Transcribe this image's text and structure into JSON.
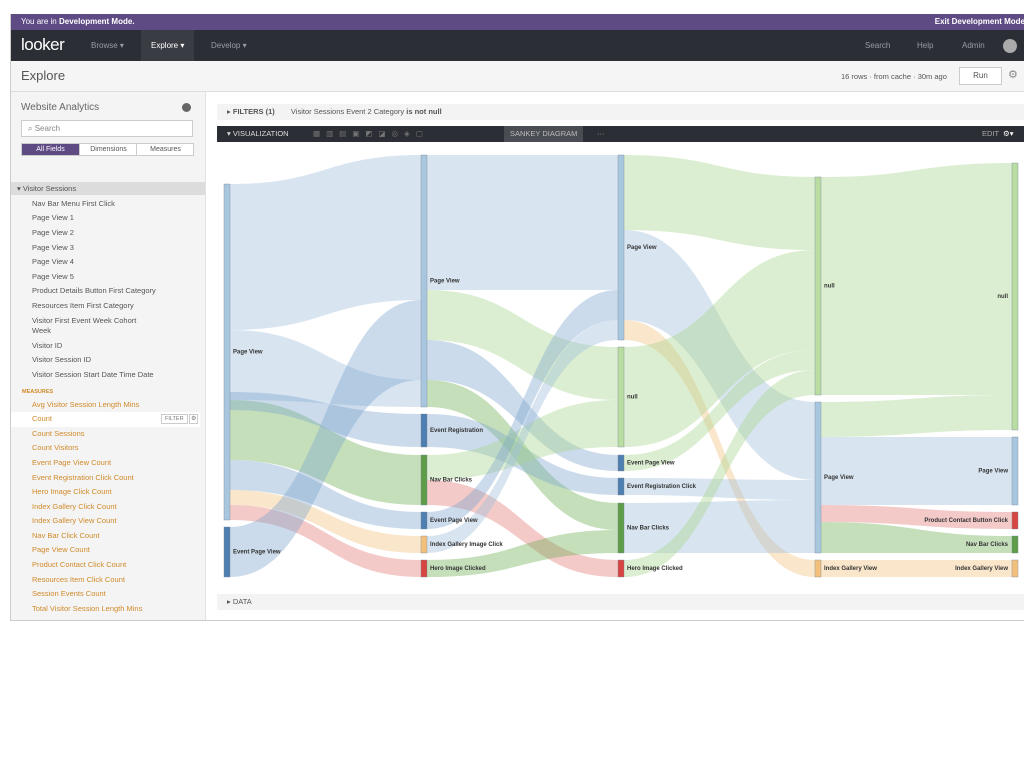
{
  "banner": {
    "prefix": "You are in ",
    "mode": "Development Mode.",
    "exit": "Exit Development Mode"
  },
  "nav": {
    "logo": "looker",
    "items": [
      "Browse",
      "Explore",
      "Develop"
    ],
    "right": [
      "Search",
      "Help",
      "Admin"
    ]
  },
  "header": {
    "title": "Explore",
    "status": "16 rows · from cache · 30m ago",
    "run": "Run"
  },
  "sidebar": {
    "model": "Website Analytics",
    "search": "Search",
    "tabs": [
      "All Fields",
      "Dimensions",
      "Measures"
    ],
    "group": "Visitor Sessions",
    "dimensions": [
      "Nav Bar Menu First Click",
      "Page View 1",
      "Page View 2",
      "Page View 3",
      "Page View 4",
      "Page View 5",
      "Product Details Button First Category",
      "Resources Item First Category",
      "Visitor First Event Week Cohort Week",
      "Visitor ID",
      "Visitor Session ID",
      "Visitor Session Start Date Time Date"
    ],
    "measures_heading": "MEASURES",
    "measures": [
      "Avg Visitor Session Length Mins",
      "Count",
      "Count Sessions",
      "Count Visitors",
      "Event Page View Count",
      "Event Registration Click Count",
      "Hero Image Click Count",
      "Index Gallery Click Count",
      "Index Gallery View Count",
      "Nav Bar Click Count",
      "Page View Count",
      "Product Contact Click Count",
      "Resources Item Click Count",
      "Session Events Count",
      "Total Visitor Session Length Mins"
    ],
    "filter": "FILTER"
  },
  "filters": {
    "label": "FILTERS (1)",
    "text": "Visitor Sessions Event 2 Category",
    "condition": "is not null"
  },
  "visualization": {
    "label": "VISUALIZATION",
    "active": "SANKEY DIAGRAM",
    "edit": "EDIT"
  },
  "sankey": {
    "columns": [
      [
        "Page View",
        "Event Page View"
      ],
      [
        "Page View",
        "Event Registration",
        "Nav Bar Clicks",
        "Event Page View",
        "Index Gallery Image Click",
        "Hero Image Clicked"
      ],
      [
        "Page View",
        "null",
        "Event Page View",
        "Event Registration Click",
        "Nav Bar Clicks",
        "Hero Image Clicked"
      ],
      [
        "null",
        "Page View",
        "Index Gallery View"
      ],
      [
        "null",
        "Page View",
        "Product Contact Button Click",
        "Nav Bar Clicks",
        "Index Gallery View"
      ]
    ]
  },
  "data_bar": {
    "label": "DATA"
  }
}
